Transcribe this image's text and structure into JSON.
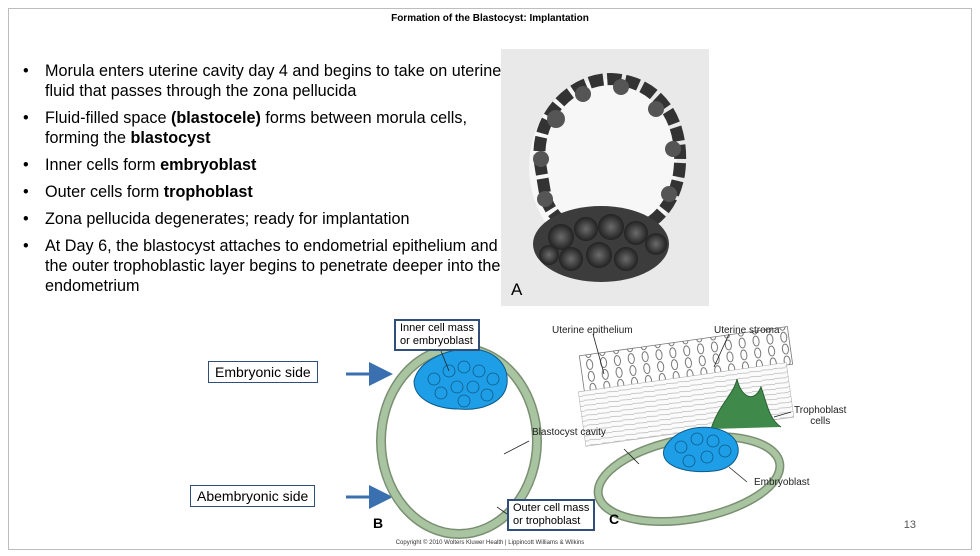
{
  "slide": {
    "title": "Formation of the Blastocyst: Implantation",
    "page_number": "13",
    "copyright": "Copyright © 2010 Wolters Kluwer Health | Lippincott Williams & Wilkins"
  },
  "bullets": [
    {
      "segments": [
        {
          "text": "Morula enters uterine cavity day 4 and begins to take on uterine fluid that passes through the zona pellucida",
          "bold": false
        }
      ]
    },
    {
      "segments": [
        {
          "text": "Fluid-filled space ",
          "bold": false
        },
        {
          "text": "(blastocele)",
          "bold": true
        },
        {
          "text": " forms between morula cells, forming the ",
          "bold": false
        },
        {
          "text": "blastocyst",
          "bold": true
        }
      ]
    },
    {
      "segments": [
        {
          "text": "Inner cells form ",
          "bold": false
        },
        {
          "text": "embryoblast",
          "bold": true
        }
      ]
    },
    {
      "segments": [
        {
          "text": "Outer cells form ",
          "bold": false
        },
        {
          "text": "trophoblast",
          "bold": true
        }
      ]
    },
    {
      "segments": [
        {
          "text": "Zona pellucida degenerates; ready for implantation",
          "bold": false
        }
      ]
    },
    {
      "segments": [
        {
          "text": "At Day 6, the blastocyst attaches to endometrial epithelium and the outer trophoblastic layer begins to penetrate deeper into the endometrium",
          "bold": false
        }
      ]
    }
  ],
  "figure": {
    "photo_label": "A",
    "letter_b": "B",
    "letter_c": "C",
    "embryonic_side": "Embryonic side",
    "abembryonic_side": "Abembryonic side",
    "inner_cell_mass": "Inner cell mass\nor embryoblast",
    "outer_cell_mass": "Outer cell mass\nor trophoblast",
    "blastocyst_cavity": "Blastocyst cavity",
    "uterine_epithelium": "Uterine epithelium",
    "uterine_stroma": "Uterine stroma",
    "trophoblast_cells": "Trophoblast\ncells",
    "embryoblast": "Embryoblast"
  },
  "colors": {
    "arrow_blue": "#3a6fb0",
    "box_border": "#2f4e7a",
    "trophoblast_green": "#a9c4a0",
    "embryoblast_blue": "#1e9ee6",
    "invading_green": "#3f8a4a"
  }
}
